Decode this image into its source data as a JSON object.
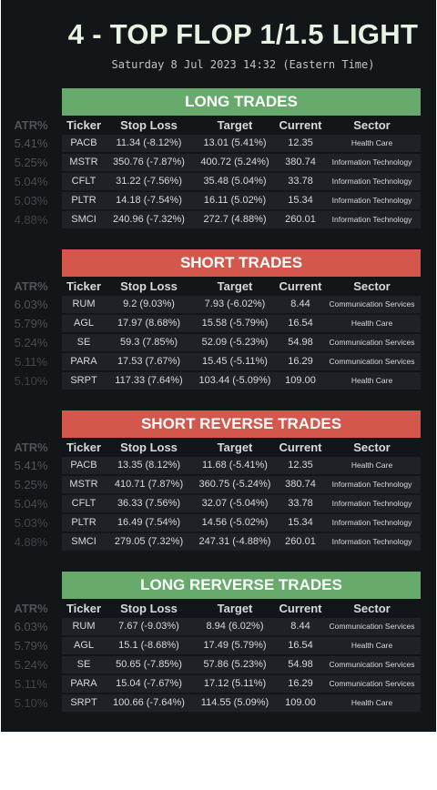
{
  "title": "4 - TOP FLOP 1/1.5 LIGHT",
  "subtitle": "Saturday 8 Jul 2023 14:32 (Eastern Time)",
  "columns": {
    "atr": "ATR%",
    "ticker": "Ticker",
    "stop": "Stop Loss",
    "target": "Target",
    "current": "Current",
    "sector": "Sector"
  },
  "colors": {
    "green_banner": "#67aa6b",
    "red_banner": "#d4574b",
    "background": "#131619",
    "row": "#1e2227"
  },
  "sections": [
    {
      "title": "LONG TRADES",
      "color": "green",
      "rows": [
        {
          "atr": "5.41%",
          "ticker": "PACB",
          "stop": "11.34 (-8.12%)",
          "target": "13.01 (5.41%)",
          "current": "12.35",
          "sector": "Health Care"
        },
        {
          "atr": "5.25%",
          "ticker": "MSTR",
          "stop": "350.76 (-7.87%)",
          "target": "400.72 (5.24%)",
          "current": "380.74",
          "sector": "Information Technology"
        },
        {
          "atr": "5.04%",
          "ticker": "CFLT",
          "stop": "31.22 (-7.56%)",
          "target": "35.48 (5.04%)",
          "current": "33.78",
          "sector": "Information Technology"
        },
        {
          "atr": "5.03%",
          "ticker": "PLTR",
          "stop": "14.18 (-7.54%)",
          "target": "16.11 (5.02%)",
          "current": "15.34",
          "sector": "Information Technology"
        },
        {
          "atr": "4.88%",
          "ticker": "SMCI",
          "stop": "240.96 (-7.32%)",
          "target": "272.7 (4.88%)",
          "current": "260.01",
          "sector": "Information Technology"
        }
      ]
    },
    {
      "title": "SHORT TRADES",
      "color": "red",
      "rows": [
        {
          "atr": "6.03%",
          "ticker": "RUM",
          "stop": "9.2 (9.03%)",
          "target": "7.93 (-6.02%)",
          "current": "8.44",
          "sector": "Communication Services"
        },
        {
          "atr": "5.79%",
          "ticker": "AGL",
          "stop": "17.97 (8.68%)",
          "target": "15.58 (-5.79%)",
          "current": "16.54",
          "sector": "Health Care"
        },
        {
          "atr": "5.24%",
          "ticker": "SE",
          "stop": "59.3 (7.85%)",
          "target": "52.09 (-5.23%)",
          "current": "54.98",
          "sector": "Communication Services"
        },
        {
          "atr": "5.11%",
          "ticker": "PARA",
          "stop": "17.53 (7.67%)",
          "target": "15.45 (-5.11%)",
          "current": "16.29",
          "sector": "Communication Services"
        },
        {
          "atr": "5.10%",
          "ticker": "SRPT",
          "stop": "117.33 (7.64%)",
          "target": "103.44 (-5.09%)",
          "current": "109.00",
          "sector": "Health Care"
        }
      ]
    },
    {
      "title": "SHORT REVERSE TRADES",
      "color": "red",
      "rows": [
        {
          "atr": "5.41%",
          "ticker": "PACB",
          "stop": "13.35 (8.12%)",
          "target": "11.68 (-5.41%)",
          "current": "12.35",
          "sector": "Health Care"
        },
        {
          "atr": "5.25%",
          "ticker": "MSTR",
          "stop": "410.71 (7.87%)",
          "target": "360.75 (-5.24%)",
          "current": "380.74",
          "sector": "Information Technology"
        },
        {
          "atr": "5.04%",
          "ticker": "CFLT",
          "stop": "36.33 (7.56%)",
          "target": "32.07 (-5.04%)",
          "current": "33.78",
          "sector": "Information Technology"
        },
        {
          "atr": "5.03%",
          "ticker": "PLTR",
          "stop": "16.49 (7.54%)",
          "target": "14.56 (-5.02%)",
          "current": "15.34",
          "sector": "Information Technology"
        },
        {
          "atr": "4.88%",
          "ticker": "SMCI",
          "stop": "279.05 (7.32%)",
          "target": "247.31 (-4.88%)",
          "current": "260.01",
          "sector": "Information Technology"
        }
      ]
    },
    {
      "title": "LONG RERVERSE TRADES",
      "color": "green",
      "rows": [
        {
          "atr": "6.03%",
          "ticker": "RUM",
          "stop": "7.67 (-9.03%)",
          "target": "8.94 (6.02%)",
          "current": "8.44",
          "sector": "Communication Services"
        },
        {
          "atr": "5.79%",
          "ticker": "AGL",
          "stop": "15.1 (-8.68%)",
          "target": "17.49 (5.79%)",
          "current": "16.54",
          "sector": "Health Care"
        },
        {
          "atr": "5.24%",
          "ticker": "SE",
          "stop": "50.65 (-7.85%)",
          "target": "57.86 (5.23%)",
          "current": "54.98",
          "sector": "Communication Services"
        },
        {
          "atr": "5.11%",
          "ticker": "PARA",
          "stop": "15.04 (-7.67%)",
          "target": "17.12 (5.11%)",
          "current": "16.29",
          "sector": "Communication Services"
        },
        {
          "atr": "5.10%",
          "ticker": "SRPT",
          "stop": "100.66 (-7.64%)",
          "target": "114.55 (5.09%)",
          "current": "109.00",
          "sector": "Health Care"
        }
      ]
    }
  ]
}
